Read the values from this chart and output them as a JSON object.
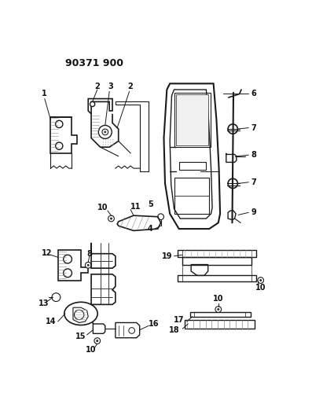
{
  "title": "90371 900",
  "bg_color": "#ffffff",
  "fig_width": 3.97,
  "fig_height": 5.33,
  "dpi": 100,
  "line_color": "#1a1a1a",
  "label_fontsize": 6.5,
  "title_fontsize": 9
}
